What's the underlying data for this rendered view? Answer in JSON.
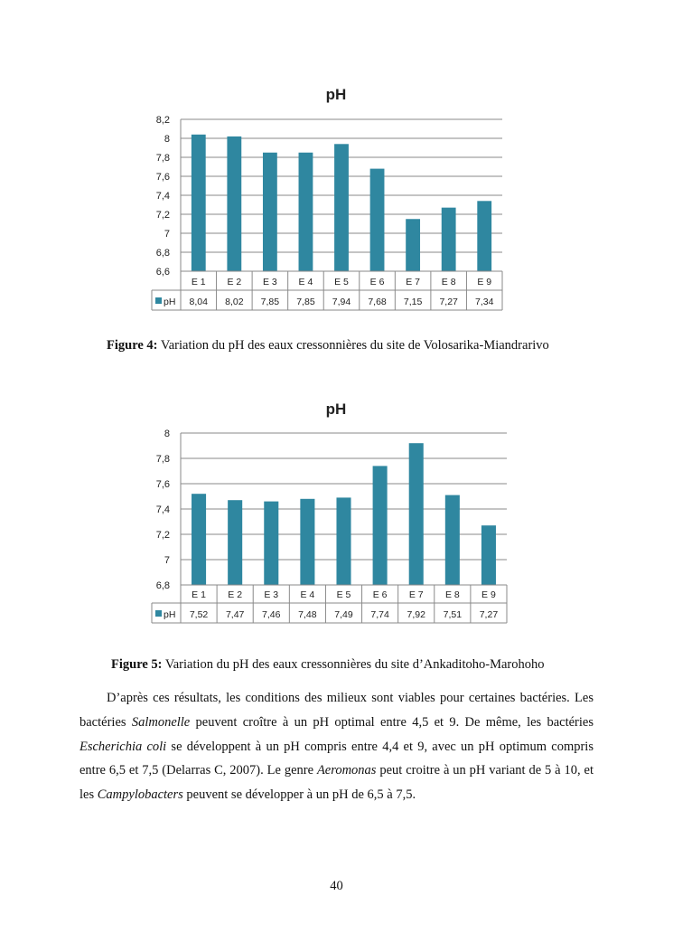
{
  "chart_data": [
    {
      "type": "bar",
      "title": "pH",
      "categories": [
        "E 1",
        "E 2",
        "E 3",
        "E 4",
        "E 5",
        "E 6",
        "E 7",
        "E 8",
        "E 9"
      ],
      "series": [
        {
          "name": "pH",
          "values": [
            8.04,
            8.02,
            7.85,
            7.85,
            7.94,
            7.68,
            7.15,
            7.27,
            7.34
          ],
          "labels": [
            "8,04",
            "8,02",
            "7,85",
            "7,85",
            "7,94",
            "7,68",
            "7,15",
            "7,27",
            "7,34"
          ]
        }
      ],
      "ylim": [
        6.6,
        8.2
      ],
      "yticks": [
        "6,6",
        "6,8",
        "7",
        "7,2",
        "7,4",
        "7,6",
        "7,8",
        "8",
        "8,2"
      ],
      "grid": true,
      "data_table": true,
      "color": "#2f87a0"
    },
    {
      "type": "bar",
      "title": "pH",
      "categories": [
        "E 1",
        "E 2",
        "E 3",
        "E 4",
        "E 5",
        "E 6",
        "E 7",
        "E 8",
        "E 9"
      ],
      "series": [
        {
          "name": "pH",
          "values": [
            7.52,
            7.47,
            7.46,
            7.48,
            7.49,
            7.74,
            7.92,
            7.51,
            7.27
          ],
          "labels": [
            "7,52",
            "7,47",
            "7,46",
            "7,48",
            "7,49",
            "7,74",
            "7,92",
            "7,51",
            "7,27"
          ]
        }
      ],
      "ylim": [
        6.8,
        8.0
      ],
      "yticks": [
        "6,8",
        "7",
        "7,2",
        "7,4",
        "7,6",
        "7,8",
        "8"
      ],
      "grid": true,
      "data_table": true,
      "color": "#2f87a0"
    }
  ],
  "captions": [
    {
      "label": "Figure 4:",
      "text": " Variation du pH des eaux cressonnières du site de Volosarika-Miandrarivo"
    },
    {
      "label": "Figure 5:",
      "text": " Variation du pH des eaux cressonnières du site d’Ankaditoho-Marohoho"
    }
  ],
  "paragraph": [
    {
      "t": "D’après ces résultats, les conditions des milieux sont viables pour certaines bactéries. Les bactéries "
    },
    {
      "i": "Salmonelle"
    },
    {
      "t": " peuvent croître à un pH optimal entre  4,5 et 9. De même, les bactéries "
    },
    {
      "i": "Escherichia coli"
    },
    {
      "t": " se développent à un pH compris entre 4,4 et 9, avec un pH optimum compris entre 6,5 et 7,5 (Delarras C, 2007). Le genre "
    },
    {
      "i": "Aeromonas"
    },
    {
      "t": " peut croitre à un pH variant de 5 à 10, et les "
    },
    {
      "i": "Campylobacters"
    },
    {
      "t": " peuvent se développer à un pH de 6,5 à 7,5."
    }
  ],
  "page_number": "40"
}
